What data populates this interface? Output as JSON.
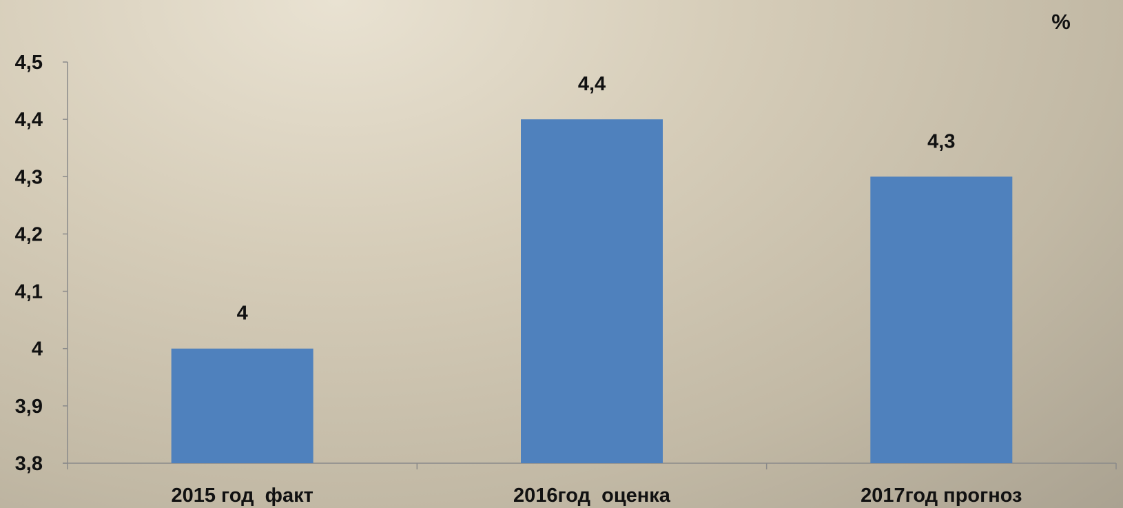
{
  "chart_data": {
    "type": "bar",
    "categories": [
      "2015 год  факт",
      "2016год  оценка",
      "2017год прогноз"
    ],
    "values": [
      4,
      4.4,
      4.3
    ],
    "data_labels": [
      "4",
      "4,4",
      "4,3"
    ],
    "ylim": [
      3.8,
      4.5
    ],
    "yticks": [
      3.8,
      3.9,
      4,
      4.1,
      4.2,
      4.3,
      4.4,
      4.5
    ],
    "ytick_labels": [
      "3,8",
      "3,9",
      "4",
      "4,1",
      "4,2",
      "4,3",
      "4,4",
      "4,5"
    ],
    "unit": "%",
    "grid": false,
    "legend": "none",
    "bar_color": "#4f81bd",
    "axis_color": "#8a8a8a"
  }
}
